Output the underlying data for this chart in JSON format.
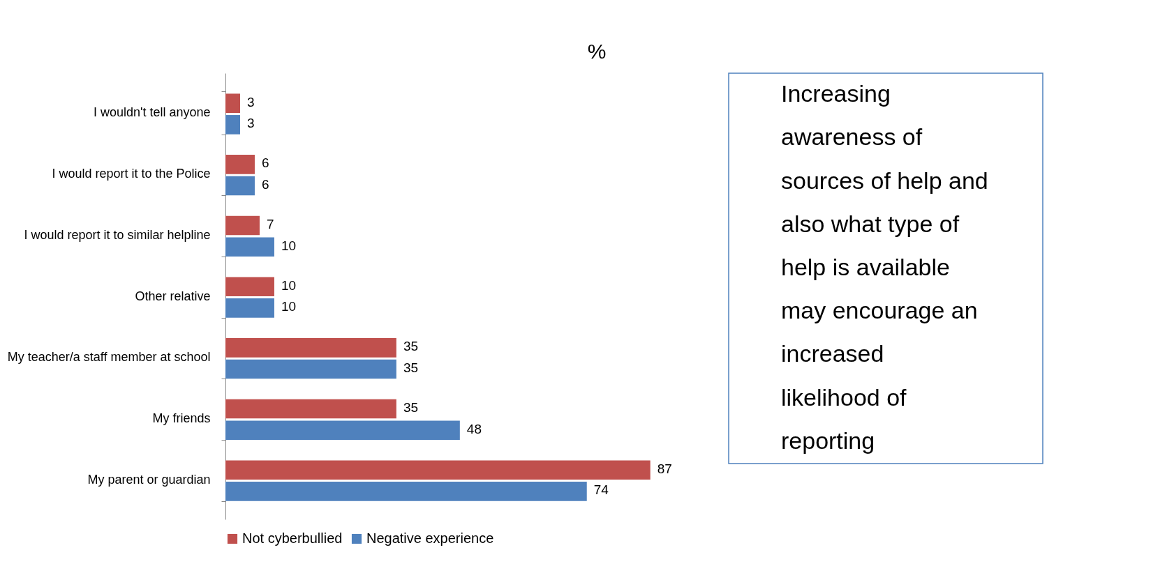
{
  "chart_data": {
    "type": "bar",
    "orientation": "horizontal",
    "categories": [
      "I wouldn't tell anyone",
      "I would report it to the Police",
      "I would report it to similar helpline",
      "Other relative",
      "My teacher/a staff member at school",
      "My friends",
      "My parent or guardian"
    ],
    "series": [
      {
        "name": "Not cyberbullied",
        "color": "#c0504d",
        "values": [
          3,
          6,
          7,
          10,
          35,
          35,
          87
        ]
      },
      {
        "name": "Negative experience",
        "color": "#4f81bd",
        "values": [
          3,
          6,
          10,
          10,
          35,
          48,
          74
        ]
      }
    ],
    "data_labels": true,
    "legend": "bottom",
    "grid": false,
    "tick_labels": "y",
    "annotations": [
      "%",
      "Increasing awareness of sources of help and also what type of help is available may encourage an increased likelihood of reporting"
    ]
  }
}
